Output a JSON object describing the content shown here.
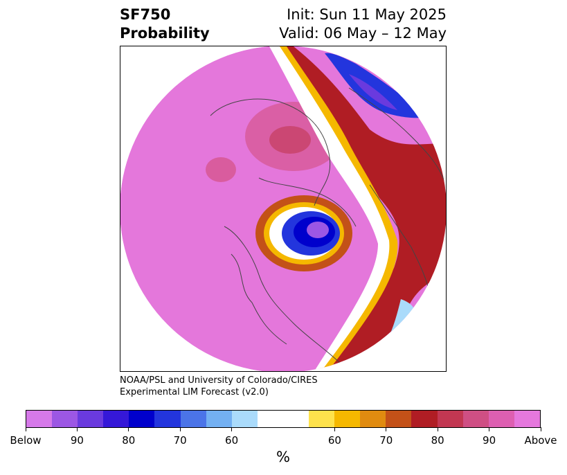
{
  "title": {
    "left_line1": "SF750",
    "left_line2": "Probability",
    "right_line1": "Init: Sun 11 May 2025",
    "right_line2": "Valid: 06 May – 12 May"
  },
  "credit": {
    "line1": "NOAA/PSL and University of Colorado/CIRES",
    "line2": "Experimental LIM Forecast (v2.0)"
  },
  "colorbar": {
    "colors": [
      "#d679e9",
      "#9c57e4",
      "#6a3ade",
      "#3518d8",
      "#0000cc",
      "#2335dd",
      "#4b74e8",
      "#73b0f2",
      "#aadbfb",
      "#ffffff",
      "#ffffff",
      "#fee24c",
      "#f5b800",
      "#e08b10",
      "#c35118",
      "#b01d24",
      "#c23752",
      "#cf4f84",
      "#dd5fb1",
      "#e578dd"
    ],
    "tick_labels": [
      "Below",
      "90",
      "80",
      "70",
      "60",
      "60",
      "70",
      "80",
      "90",
      "Above"
    ],
    "unit": "%"
  },
  "map": {
    "background_color": "#e477db"
  }
}
